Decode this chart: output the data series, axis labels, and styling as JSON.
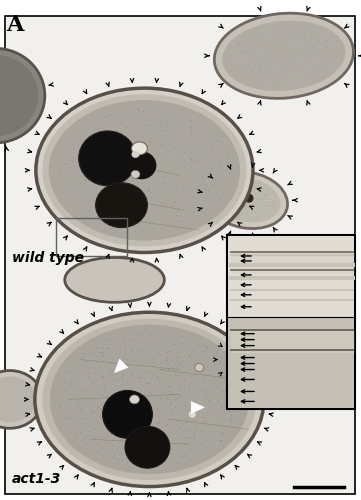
{
  "panel_label": "A",
  "panel_label_fontsize": 16,
  "panel_label_weight": "bold",
  "label_wild_type": "wild type",
  "label_act": "act1-3",
  "figsize": [
    3.61,
    5.0
  ],
  "dpi": 100,
  "bg_color": "#e8e8e8",
  "cell_bg": "#b8b4ae",
  "cell_border": "#5a5045",
  "cell_interior_wt": "#a8a49e",
  "cell_interior_act": "#9e9a94",
  "nucleus_dark": "#151515",
  "nucleus_mid": "#282828",
  "inset_bg": "#c8c4bc",
  "white_space": "#f0f0ee",
  "arrow_color": "#000000",
  "white_arrow": "#ffffff",
  "scale_bar": "#000000",
  "label_color": "#000000",
  "border_color": "#000000"
}
